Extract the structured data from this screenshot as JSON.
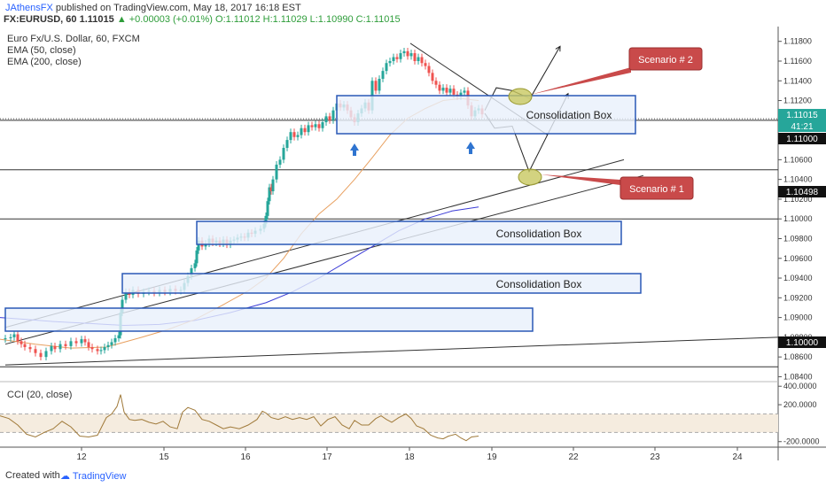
{
  "header": {
    "author": "JAthensFX",
    "published": "published on TradingView.com, May 18, 2017 16:18 EST",
    "symbol_line": "FX:EURUSD, 60",
    "price": "1.11015",
    "change": "▲ +0.00003 (+0.01%)",
    "ohlc": "O:1.11012 H:1.11029 L:1.10990 C:1.11015"
  },
  "legend": {
    "title": "Euro Fx/U.S. Dollar, 60, FXCM",
    "ema50": "EMA (50, close)",
    "ema200": "EMA (200, close)",
    "cci": "CCI (20, close)"
  },
  "annotations": {
    "consolidation": "Consolidation Box",
    "scenario1": "Scenario # 1",
    "scenario2": "Scenario # 2"
  },
  "price_badges": {
    "last": "1.11015",
    "countdown": "41:21",
    "level1": "1.11000",
    "level2": "1.10498",
    "level3": "1.10000"
  },
  "footer": {
    "created": "Created with",
    "brand": "TradingView"
  },
  "colors": {
    "up": "#26a69a",
    "down": "#ef5350",
    "ema50": "#e8a060",
    "ema200": "#3b3bd6",
    "box_border": "#2a58b6",
    "box_fill": "#e8f0fb",
    "scenario_fill": "#c94a4a",
    "marker_fill": "#c8c860",
    "cci": "#a07a3a"
  },
  "chart_data": {
    "type": "candlestick",
    "symbol": "FX:EURUSD",
    "interval": "60",
    "x_tick_labels": [
      "12",
      "15",
      "16",
      "17",
      "18",
      "19",
      "22",
      "23",
      "24"
    ],
    "y_tick_labels": [
      "1.11800",
      "1.11600",
      "1.11400",
      "1.11200",
      "1.11000",
      "1.10800",
      "1.10600",
      "1.10400",
      "1.10200",
      "1.10000",
      "1.09800",
      "1.09600",
      "1.09400",
      "1.09200",
      "1.09000",
      "1.08800",
      "1.08600",
      "1.08400"
    ],
    "ylim": [
      1.0835,
      1.1195
    ],
    "close_path": [
      [
        0,
        1.0878
      ],
      [
        6,
        1.0879
      ],
      [
        12,
        1.088
      ],
      [
        16,
        1.0883
      ],
      [
        20,
        1.0876
      ],
      [
        24,
        1.0873
      ],
      [
        28,
        1.087
      ],
      [
        34,
        1.0868
      ],
      [
        40,
        1.0864
      ],
      [
        46,
        1.086
      ],
      [
        52,
        1.0866
      ],
      [
        58,
        1.0871
      ],
      [
        62,
        1.0868
      ],
      [
        68,
        1.0873
      ],
      [
        74,
        1.0871
      ],
      [
        80,
        1.0876
      ],
      [
        86,
        1.0874
      ],
      [
        92,
        1.0878
      ],
      [
        96,
        1.0875
      ],
      [
        100,
        1.087
      ],
      [
        104,
        1.0868
      ],
      [
        110,
        1.0866
      ],
      [
        114,
        1.0867
      ],
      [
        118,
        1.087
      ],
      [
        122,
        1.0872
      ],
      [
        126,
        1.0875
      ],
      [
        130,
        1.0879
      ],
      [
        134,
        1.0882
      ],
      [
        136,
        1.0905
      ],
      [
        138,
        1.0918
      ],
      [
        142,
        1.0926
      ],
      [
        146,
        1.0923
      ],
      [
        150,
        1.0928
      ],
      [
        156,
        1.0924
      ],
      [
        162,
        1.0926
      ],
      [
        168,
        1.0927
      ],
      [
        174,
        1.0925
      ],
      [
        180,
        1.0928
      ],
      [
        186,
        1.0926
      ],
      [
        192,
        1.0929
      ],
      [
        198,
        1.0927
      ],
      [
        204,
        1.0928
      ],
      [
        208,
        1.0935
      ],
      [
        212,
        1.0942
      ],
      [
        216,
        1.095
      ],
      [
        220,
        1.0955
      ],
      [
        222,
        1.0968
      ],
      [
        224,
        1.0978
      ],
      [
        228,
        1.0972
      ],
      [
        232,
        1.0975
      ],
      [
        236,
        1.098
      ],
      [
        240,
        1.0976
      ],
      [
        244,
        1.0978
      ],
      [
        248,
        1.0975
      ],
      [
        252,
        1.0979
      ],
      [
        256,
        1.0974
      ],
      [
        260,
        1.0978
      ],
      [
        264,
        1.0979
      ],
      [
        268,
        1.0981
      ],
      [
        272,
        1.0982
      ],
      [
        276,
        1.0981
      ],
      [
        280,
        1.0986
      ],
      [
        284,
        1.0985
      ],
      [
        288,
        1.0988
      ],
      [
        294,
        1.099
      ],
      [
        298,
        1.0995
      ],
      [
        300,
        1.1003
      ],
      [
        302,
        1.1018
      ],
      [
        304,
        1.1032
      ],
      [
        306,
        1.1028
      ],
      [
        308,
        1.104
      ],
      [
        312,
        1.1055
      ],
      [
        316,
        1.106
      ],
      [
        320,
        1.1072
      ],
      [
        324,
        1.108
      ],
      [
        328,
        1.1088
      ],
      [
        332,
        1.1083
      ],
      [
        336,
        1.1085
      ],
      [
        340,
        1.1092
      ],
      [
        344,
        1.1088
      ],
      [
        348,
        1.1095
      ],
      [
        352,
        1.1093
      ],
      [
        356,
        1.1096
      ],
      [
        360,
        1.1092
      ],
      [
        364,
        1.1098
      ],
      [
        368,
        1.1104
      ],
      [
        372,
        1.11
      ],
      [
        376,
        1.111
      ],
      [
        380,
        1.1117
      ],
      [
        384,
        1.1113
      ],
      [
        388,
        1.1116
      ],
      [
        392,
        1.111
      ],
      [
        396,
        1.1103
      ],
      [
        400,
        1.1098
      ],
      [
        404,
        1.1107
      ],
      [
        408,
        1.1112
      ],
      [
        412,
        1.1118
      ],
      [
        416,
        1.111
      ],
      [
        420,
        1.114
      ],
      [
        424,
        1.113
      ],
      [
        428,
        1.1142
      ],
      [
        432,
        1.115
      ],
      [
        436,
        1.1158
      ],
      [
        440,
        1.116
      ],
      [
        444,
        1.1164
      ],
      [
        448,
        1.1162
      ],
      [
        452,
        1.1168
      ],
      [
        456,
        1.117
      ],
      [
        460,
        1.1165
      ],
      [
        464,
        1.1168
      ],
      [
        468,
        1.116
      ],
      [
        472,
        1.1164
      ],
      [
        476,
        1.1158
      ],
      [
        480,
        1.1155
      ],
      [
        484,
        1.1148
      ],
      [
        488,
        1.114
      ],
      [
        492,
        1.1136
      ],
      [
        496,
        1.113
      ],
      [
        500,
        1.1133
      ],
      [
        504,
        1.1128
      ],
      [
        508,
        1.1132
      ],
      [
        512,
        1.1126
      ],
      [
        516,
        1.1124
      ],
      [
        520,
        1.1128
      ],
      [
        524,
        1.113
      ],
      [
        528,
        1.1115
      ],
      [
        532,
        1.1104
      ],
      [
        536,
        1.111
      ],
      [
        540,
        1.1112
      ],
      [
        544,
        1.1106
      ]
    ],
    "ema50_path": [
      [
        0,
        1.0878
      ],
      [
        40,
        1.0873
      ],
      [
        80,
        1.0869
      ],
      [
        120,
        1.087
      ],
      [
        160,
        1.088
      ],
      [
        190,
        1.0888
      ],
      [
        220,
        1.0898
      ],
      [
        250,
        1.0912
      ],
      [
        280,
        1.0927
      ],
      [
        300,
        1.094
      ],
      [
        320,
        1.096
      ],
      [
        340,
        1.0985
      ],
      [
        360,
        1.1005
      ],
      [
        380,
        1.102
      ],
      [
        400,
        1.104
      ],
      [
        420,
        1.1062
      ],
      [
        440,
        1.1085
      ],
      [
        460,
        1.1102
      ],
      [
        480,
        1.1112
      ],
      [
        500,
        1.112
      ],
      [
        520,
        1.1122
      ],
      [
        540,
        1.112
      ]
    ],
    "ema200_path": [
      [
        0,
        1.09
      ],
      [
        30,
        1.0898
      ],
      [
        60,
        1.0896
      ],
      [
        100,
        1.0894
      ],
      [
        140,
        1.0892
      ],
      [
        180,
        1.0893
      ],
      [
        220,
        1.0897
      ],
      [
        260,
        1.0905
      ],
      [
        300,
        1.0915
      ],
      [
        330,
        1.0926
      ],
      [
        360,
        1.094
      ],
      [
        390,
        1.0956
      ],
      [
        420,
        1.0972
      ],
      [
        450,
        1.0988
      ],
      [
        480,
        1.1
      ],
      [
        510,
        1.1008
      ],
      [
        540,
        1.1012
      ]
    ],
    "cci_ylim": [
      -260,
      450
    ],
    "cci_ticks": [
      "400.0000",
      "200.0000",
      "-200.0000"
    ],
    "cci_path": [
      [
        0,
        80
      ],
      [
        10,
        50
      ],
      [
        20,
        -20
      ],
      [
        30,
        -120
      ],
      [
        40,
        -150
      ],
      [
        50,
        -100
      ],
      [
        60,
        -60
      ],
      [
        70,
        20
      ],
      [
        80,
        -40
      ],
      [
        90,
        -140
      ],
      [
        100,
        -150
      ],
      [
        110,
        -130
      ],
      [
        120,
        60
      ],
      [
        126,
        100
      ],
      [
        132,
        180
      ],
      [
        136,
        310
      ],
      [
        140,
        120
      ],
      [
        146,
        40
      ],
      [
        152,
        30
      ],
      [
        160,
        40
      ],
      [
        168,
        10
      ],
      [
        176,
        -10
      ],
      [
        184,
        20
      ],
      [
        192,
        -40
      ],
      [
        200,
        -60
      ],
      [
        206,
        120
      ],
      [
        212,
        170
      ],
      [
        220,
        140
      ],
      [
        228,
        40
      ],
      [
        236,
        20
      ],
      [
        244,
        -20
      ],
      [
        252,
        -60
      ],
      [
        260,
        -40
      ],
      [
        270,
        -60
      ],
      [
        280,
        -20
      ],
      [
        290,
        40
      ],
      [
        296,
        130
      ],
      [
        300,
        110
      ],
      [
        306,
        60
      ],
      [
        314,
        40
      ],
      [
        322,
        70
      ],
      [
        330,
        40
      ],
      [
        338,
        60
      ],
      [
        346,
        40
      ],
      [
        354,
        70
      ],
      [
        362,
        -30
      ],
      [
        370,
        40
      ],
      [
        378,
        70
      ],
      [
        386,
        -20
      ],
      [
        394,
        -60
      ],
      [
        400,
        30
      ],
      [
        408,
        -20
      ],
      [
        416,
        -20
      ],
      [
        424,
        50
      ],
      [
        430,
        80
      ],
      [
        436,
        40
      ],
      [
        442,
        10
      ],
      [
        450,
        60
      ],
      [
        458,
        100
      ],
      [
        464,
        50
      ],
      [
        470,
        -30
      ],
      [
        478,
        -60
      ],
      [
        486,
        -130
      ],
      [
        494,
        -160
      ],
      [
        500,
        -170
      ],
      [
        506,
        -140
      ],
      [
        514,
        -120
      ],
      [
        520,
        -160
      ],
      [
        526,
        -190
      ],
      [
        532,
        -150
      ],
      [
        540,
        -140
      ]
    ],
    "consolidation_boxes": [
      {
        "label": "Consolidation Box",
        "y_top": 1.1122,
        "y_bottom": 1.1096
      },
      {
        "label": "Consolidation Box",
        "y_top": 1.0986,
        "y_bottom": 1.0966
      },
      {
        "label": "Consolidation Box",
        "y_top": 1.0933,
        "y_bottom": 1.0916
      },
      {
        "label": "",
        "y_top": 1.0897,
        "y_bottom": 1.0878
      }
    ],
    "horizontal_levels": [
      1.11,
      1.10498,
      1.1,
      1.085
    ],
    "scenarios": [
      "Scenario # 1",
      "Scenario # 2"
    ]
  }
}
